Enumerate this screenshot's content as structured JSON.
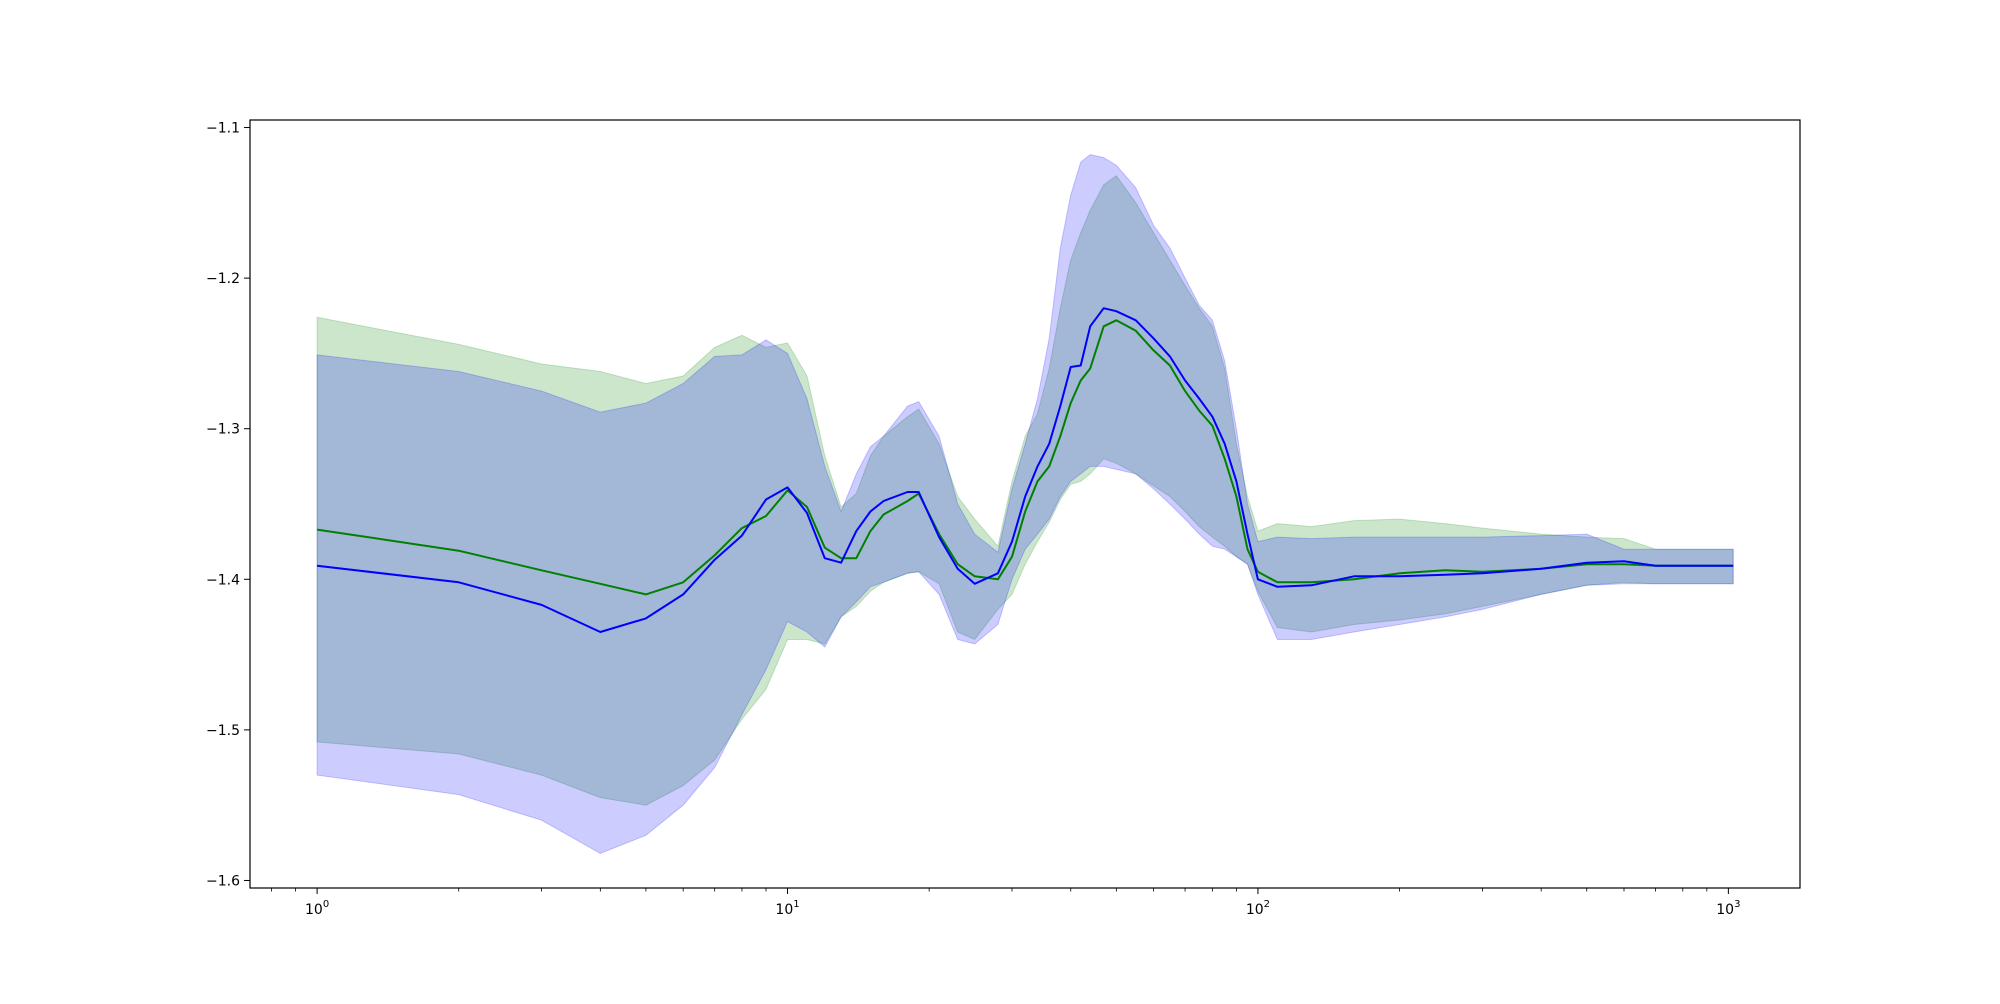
{
  "chart_data": {
    "type": "line",
    "title": "",
    "xlabel": "",
    "ylabel": "",
    "xscale": "log",
    "xlim": [
      0.72,
      1420
    ],
    "ylim": [
      -1.605,
      -1.095
    ],
    "grid": false,
    "legend": "none",
    "x_ticks": [
      {
        "value": 1,
        "base": "10",
        "exp": "0"
      },
      {
        "value": 10,
        "base": "10",
        "exp": "1"
      },
      {
        "value": 100,
        "base": "10",
        "exp": "2"
      },
      {
        "value": 1000,
        "base": "10",
        "exp": "3"
      }
    ],
    "y_ticks": [
      {
        "value": -1.1,
        "label": "−1.1"
      },
      {
        "value": -1.2,
        "label": "−1.2"
      },
      {
        "value": -1.3,
        "label": "−1.3"
      },
      {
        "value": -1.4,
        "label": "−1.4"
      },
      {
        "value": -1.5,
        "label": "−1.5"
      },
      {
        "value": -1.6,
        "label": "−1.6"
      }
    ],
    "series": [
      {
        "color": "#008000",
        "band_color": "#008000",
        "band_opacity": 0.2,
        "x": [
          1,
          2,
          3,
          4,
          5,
          6,
          7,
          8,
          9,
          10,
          11,
          12,
          13,
          14,
          15,
          16,
          18,
          19,
          21,
          23,
          25,
          28,
          30,
          32,
          34,
          36,
          38,
          40,
          42,
          44,
          47,
          50,
          55,
          60,
          65,
          70,
          75,
          80,
          85,
          90,
          95,
          100,
          110,
          130,
          160,
          200,
          250,
          300,
          400,
          500,
          600,
          700,
          800,
          1024
        ],
        "mean": [
          -1.367,
          -1.381,
          -1.394,
          -1.403,
          -1.41,
          -1.402,
          -1.384,
          -1.366,
          -1.358,
          -1.341,
          -1.352,
          -1.379,
          -1.386,
          -1.386,
          -1.368,
          -1.357,
          -1.348,
          -1.343,
          -1.37,
          -1.39,
          -1.398,
          -1.4,
          -1.385,
          -1.355,
          -1.335,
          -1.325,
          -1.305,
          -1.283,
          -1.268,
          -1.26,
          -1.232,
          -1.228,
          -1.235,
          -1.248,
          -1.258,
          -1.275,
          -1.288,
          -1.298,
          -1.32,
          -1.345,
          -1.38,
          -1.395,
          -1.402,
          -1.402,
          -1.4,
          -1.396,
          -1.394,
          -1.395,
          -1.393,
          -1.39,
          -1.39,
          -1.391,
          -1.391,
          -1.391
        ],
        "upper": [
          -1.226,
          -1.244,
          -1.257,
          -1.262,
          -1.27,
          -1.265,
          -1.246,
          -1.238,
          -1.246,
          -1.243,
          -1.265,
          -1.318,
          -1.352,
          -1.343,
          -1.318,
          -1.305,
          -1.292,
          -1.287,
          -1.31,
          -1.345,
          -1.36,
          -1.378,
          -1.335,
          -1.305,
          -1.29,
          -1.26,
          -1.22,
          -1.188,
          -1.17,
          -1.155,
          -1.138,
          -1.132,
          -1.15,
          -1.17,
          -1.188,
          -1.205,
          -1.22,
          -1.232,
          -1.26,
          -1.31,
          -1.345,
          -1.368,
          -1.363,
          -1.365,
          -1.361,
          -1.36,
          -1.363,
          -1.366,
          -1.37,
          -1.372,
          -1.373,
          -1.38,
          -1.38,
          -1.38
        ],
        "lower": [
          -1.508,
          -1.516,
          -1.53,
          -1.545,
          -1.55,
          -1.537,
          -1.52,
          -1.493,
          -1.473,
          -1.44,
          -1.44,
          -1.443,
          -1.425,
          -1.418,
          -1.408,
          -1.402,
          -1.396,
          -1.395,
          -1.403,
          -1.435,
          -1.44,
          -1.42,
          -1.41,
          -1.39,
          -1.375,
          -1.362,
          -1.347,
          -1.337,
          -1.335,
          -1.33,
          -1.32,
          -1.323,
          -1.33,
          -1.338,
          -1.345,
          -1.355,
          -1.365,
          -1.372,
          -1.378,
          -1.385,
          -1.39,
          -1.408,
          -1.432,
          -1.435,
          -1.43,
          -1.427,
          -1.423,
          -1.418,
          -1.41,
          -1.404,
          -1.402,
          -1.403,
          -1.403,
          -1.403
        ]
      },
      {
        "color": "#0000ff",
        "band_color": "#0000ff",
        "band_opacity": 0.2,
        "x": [
          1,
          2,
          3,
          4,
          5,
          6,
          7,
          8,
          9,
          10,
          11,
          12,
          13,
          14,
          15,
          16,
          18,
          19,
          21,
          23,
          25,
          28,
          30,
          32,
          34,
          36,
          38,
          40,
          42,
          44,
          47,
          50,
          55,
          60,
          65,
          70,
          75,
          80,
          85,
          90,
          95,
          100,
          110,
          130,
          160,
          200,
          250,
          300,
          400,
          500,
          600,
          700,
          800,
          1024
        ],
        "mean": [
          -1.391,
          -1.402,
          -1.417,
          -1.435,
          -1.426,
          -1.41,
          -1.387,
          -1.371,
          -1.347,
          -1.339,
          -1.356,
          -1.386,
          -1.389,
          -1.368,
          -1.355,
          -1.348,
          -1.342,
          -1.342,
          -1.372,
          -1.393,
          -1.403,
          -1.396,
          -1.375,
          -1.345,
          -1.325,
          -1.31,
          -1.285,
          -1.259,
          -1.258,
          -1.232,
          -1.22,
          -1.222,
          -1.228,
          -1.24,
          -1.252,
          -1.268,
          -1.28,
          -1.292,
          -1.31,
          -1.335,
          -1.37,
          -1.4,
          -1.405,
          -1.404,
          -1.398,
          -1.398,
          -1.397,
          -1.396,
          -1.393,
          -1.389,
          -1.388,
          -1.391,
          -1.391,
          -1.391
        ],
        "upper": [
          -1.251,
          -1.262,
          -1.275,
          -1.289,
          -1.283,
          -1.27,
          -1.252,
          -1.251,
          -1.241,
          -1.25,
          -1.28,
          -1.325,
          -1.355,
          -1.33,
          -1.312,
          -1.305,
          -1.285,
          -1.282,
          -1.305,
          -1.35,
          -1.37,
          -1.382,
          -1.34,
          -1.31,
          -1.28,
          -1.24,
          -1.18,
          -1.145,
          -1.123,
          -1.118,
          -1.12,
          -1.125,
          -1.14,
          -1.165,
          -1.18,
          -1.2,
          -1.218,
          -1.228,
          -1.255,
          -1.3,
          -1.35,
          -1.375,
          -1.372,
          -1.373,
          -1.372,
          -1.372,
          -1.372,
          -1.372,
          -1.371,
          -1.37,
          -1.38,
          -1.38,
          -1.38,
          -1.38
        ],
        "lower": [
          -1.53,
          -1.543,
          -1.56,
          -1.582,
          -1.57,
          -1.55,
          -1.525,
          -1.49,
          -1.46,
          -1.428,
          -1.435,
          -1.445,
          -1.425,
          -1.415,
          -1.405,
          -1.402,
          -1.396,
          -1.395,
          -1.41,
          -1.44,
          -1.443,
          -1.43,
          -1.4,
          -1.38,
          -1.37,
          -1.36,
          -1.345,
          -1.335,
          -1.33,
          -1.325,
          -1.325,
          -1.327,
          -1.33,
          -1.34,
          -1.35,
          -1.36,
          -1.37,
          -1.378,
          -1.38,
          -1.385,
          -1.39,
          -1.41,
          -1.44,
          -1.44,
          -1.435,
          -1.43,
          -1.425,
          -1.42,
          -1.41,
          -1.404,
          -1.403,
          -1.403,
          -1.403,
          -1.403
        ]
      }
    ]
  }
}
